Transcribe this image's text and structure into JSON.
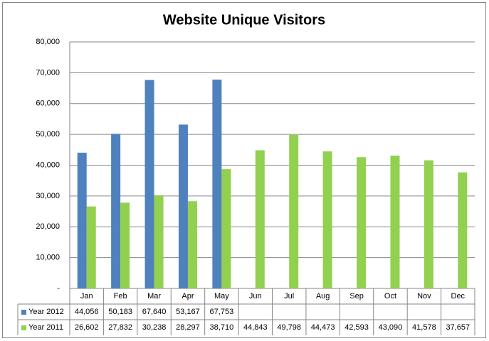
{
  "chart_data": {
    "type": "bar",
    "title": "Website Unique Visitors",
    "categories": [
      "Jan",
      "Feb",
      "Mar",
      "Apr",
      "May",
      "Jun",
      "Jul",
      "Aug",
      "Sep",
      "Oct",
      "Nov",
      "Dec"
    ],
    "series": [
      {
        "name": "Year 2012",
        "color": "#4f81bd",
        "values": [
          44056,
          50183,
          67640,
          53167,
          67753,
          null,
          null,
          null,
          null,
          null,
          null,
          null
        ],
        "value_labels": [
          "44,056",
          "50,183",
          "67,640",
          "53,167",
          "67,753",
          null,
          null,
          null,
          null,
          null,
          null,
          null
        ]
      },
      {
        "name": "Year 2011",
        "color": "#92d050",
        "values": [
          26602,
          27832,
          30238,
          28297,
          38710,
          44843,
          49798,
          44473,
          42593,
          43090,
          41578,
          37657
        ],
        "value_labels": [
          "26,602",
          "27,832",
          "30,238",
          "28,297",
          "38,710",
          "44,843",
          "49,798",
          "44,473",
          "42,593",
          "43,090",
          "41,578",
          "37,657"
        ]
      }
    ],
    "ylim": [
      0,
      80000
    ],
    "yticks": [
      {
        "value": 0,
        "label": "-"
      },
      {
        "value": 10000,
        "label": "10,000"
      },
      {
        "value": 20000,
        "label": "20,000"
      },
      {
        "value": 30000,
        "label": "30,000"
      },
      {
        "value": 40000,
        "label": "40,000"
      },
      {
        "value": 50000,
        "label": "50,000"
      },
      {
        "value": 60000,
        "label": "60,000"
      },
      {
        "value": 70000,
        "label": "70,000"
      },
      {
        "value": 80000,
        "label": "80,000"
      }
    ],
    "grid": true
  }
}
